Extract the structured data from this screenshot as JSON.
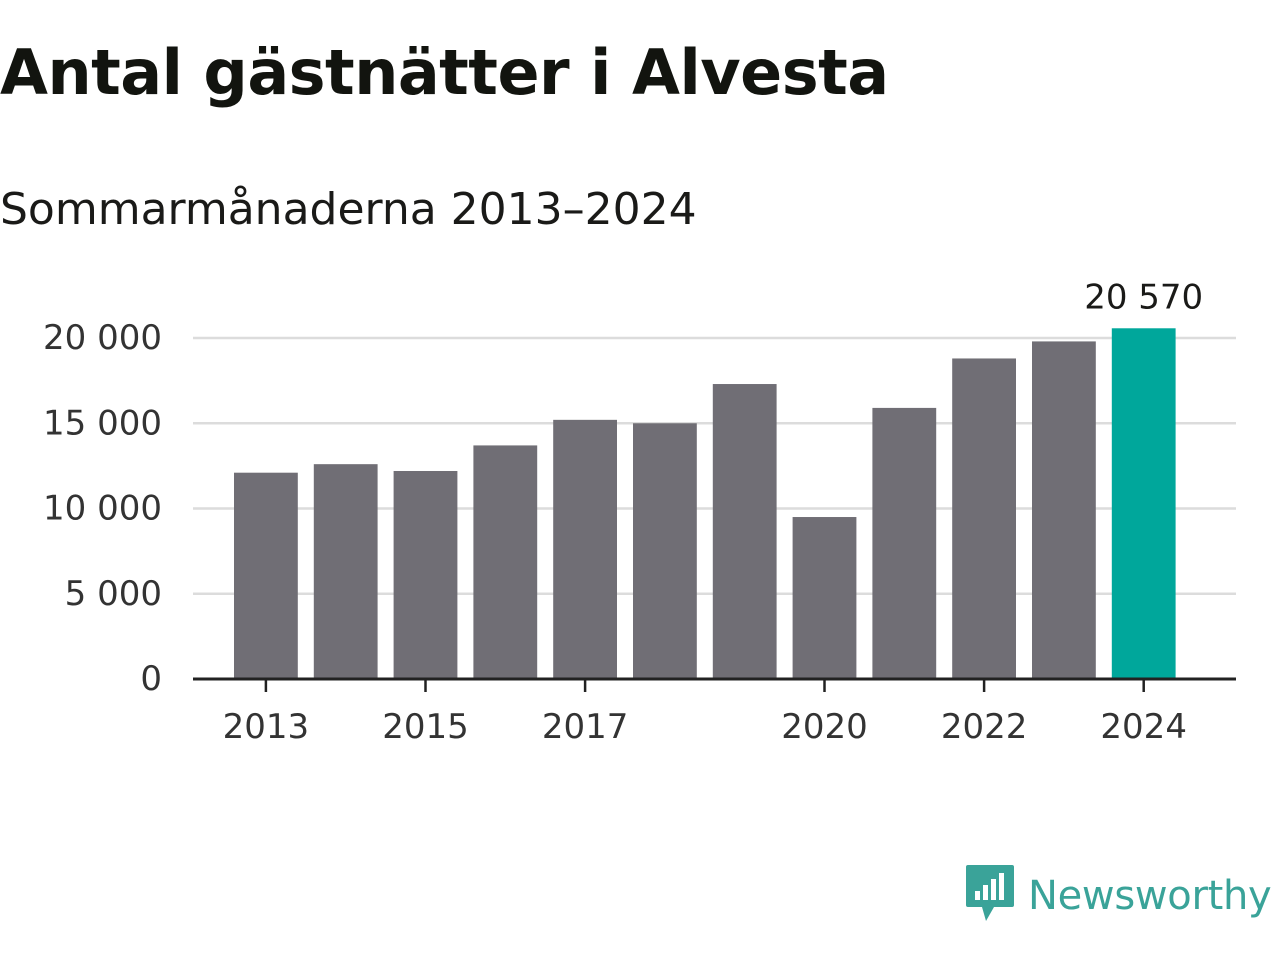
{
  "title": "Antal gästnätter i Alvesta",
  "subtitle": "Sommarmånaderna 2013–2024",
  "brand": {
    "name": "Newsworthy",
    "logo_icon": "newsworthy-logo-icon",
    "color": "#3aa399"
  },
  "colors": {
    "bar": "#706e75",
    "highlight": "#00a79b",
    "grid": "#dcdcdc",
    "axis": "#222222",
    "text": "#333333"
  },
  "chart_data": {
    "type": "bar",
    "categories": [
      "2013",
      "2014",
      "2015",
      "2016",
      "2017",
      "2018",
      "2019",
      "2020",
      "2021",
      "2022",
      "2023",
      "2024"
    ],
    "values": [
      12100,
      12600,
      12200,
      13700,
      15200,
      15000,
      17300,
      9500,
      15900,
      18800,
      19800,
      20570
    ],
    "highlight_index": 11,
    "data_labels": [
      {
        "index": 11,
        "text": "20 570"
      }
    ],
    "x_tick_labels": [
      "2013",
      "2015",
      "2017",
      "2020",
      "2022",
      "2024"
    ],
    "y_ticks": [
      0,
      5000,
      10000,
      15000,
      20000
    ],
    "y_tick_labels": [
      "0",
      "5 000",
      "10 000",
      "15 000",
      "20 000"
    ],
    "ylim": [
      0,
      20000
    ],
    "xlabel": "",
    "ylabel": "",
    "grid": true,
    "legend": "none"
  }
}
